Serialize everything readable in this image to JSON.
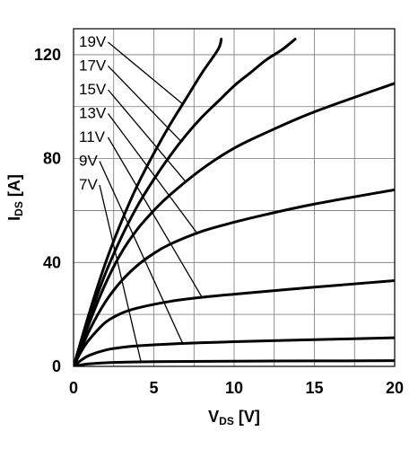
{
  "chart_data": {
    "type": "line",
    "xlabel": {
      "main": "V",
      "sub": "DS",
      "unit": " [V]"
    },
    "ylabel": {
      "main": "I",
      "sub": "DS",
      "unit": " [A]"
    },
    "xlim": [
      0,
      20
    ],
    "ylim": [
      0,
      130
    ],
    "xticks": [
      0,
      5,
      10,
      15,
      20
    ],
    "yticks": [
      0,
      40,
      80,
      120
    ],
    "grid": true,
    "series": [
      {
        "name": "7V",
        "x": [
          0,
          0.5,
          1,
          2,
          3,
          5,
          10,
          15,
          20
        ],
        "y": [
          0,
          0.6,
          1.0,
          1.4,
          1.6,
          1.8,
          2.0,
          2.1,
          2.2
        ]
      },
      {
        "name": "9V",
        "x": [
          0,
          0.5,
          1,
          2,
          3,
          4,
          6,
          8,
          10,
          15,
          20
        ],
        "y": [
          0,
          2.5,
          4.3,
          6.3,
          7.3,
          7.9,
          8.6,
          9.1,
          9.5,
          10.3,
          11.0
        ]
      },
      {
        "name": "11V",
        "x": [
          0,
          0.5,
          1,
          2,
          3,
          4,
          6,
          8,
          10,
          15,
          20
        ],
        "y": [
          0,
          6,
          10.5,
          17,
          20.5,
          22.5,
          25,
          26.6,
          27.8,
          30.5,
          33
        ]
      },
      {
        "name": "13V",
        "x": [
          0,
          1,
          2,
          3,
          4,
          5,
          6,
          8,
          10,
          12,
          15,
          20
        ],
        "y": [
          0,
          14,
          25,
          33,
          39,
          43.5,
          47,
          52,
          55.5,
          58.5,
          62.5,
          68
        ]
      },
      {
        "name": "15V",
        "x": [
          0,
          1,
          2,
          3,
          4,
          5,
          6,
          8,
          10,
          12,
          15,
          20
        ],
        "y": [
          0,
          17,
          32,
          44,
          53,
          60,
          66,
          76,
          84,
          90,
          98,
          109
        ]
      },
      {
        "name": "17V",
        "x": [
          0,
          1,
          2,
          3,
          4,
          5,
          6,
          7,
          8,
          9,
          10,
          11,
          12,
          13,
          13.8
        ],
        "y": [
          0,
          19,
          36,
          50,
          62,
          72,
          81,
          89,
          96,
          102,
          108,
          113,
          118,
          122,
          126
        ]
      },
      {
        "name": "19V",
        "x": [
          0,
          1,
          2,
          3,
          4,
          5,
          6,
          7,
          8,
          9,
          9.2
        ],
        "y": [
          0,
          21,
          40,
          56,
          70,
          82,
          93,
          103,
          113,
          122,
          126
        ]
      }
    ],
    "annotations": [
      {
        "text": "19V",
        "series": "19V",
        "at_x": 6.8
      },
      {
        "text": "17V",
        "series": "17V",
        "at_x": 6.7
      },
      {
        "text": "15V",
        "series": "15V",
        "at_x": 7.0
      },
      {
        "text": "13V",
        "series": "13V",
        "at_x": 7.7
      },
      {
        "text": "11V",
        "series": "11V",
        "at_x": 8.0
      },
      {
        "text": "9V",
        "series": "9V",
        "at_x": 6.8
      },
      {
        "text": "7V",
        "series": "7V",
        "at_x": 4.2
      }
    ]
  }
}
